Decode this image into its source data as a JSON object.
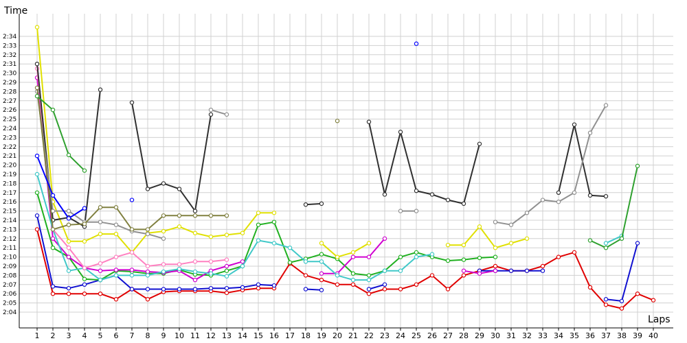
{
  "chart_data": {
    "type": "line",
    "ylabel": "Time",
    "xlabel": "Laps",
    "x": [
      1,
      2,
      3,
      4,
      5,
      6,
      7,
      8,
      9,
      10,
      11,
      12,
      13,
      14,
      15,
      16,
      17,
      18,
      19,
      20,
      21,
      22,
      23,
      24,
      25,
      26,
      27,
      28,
      29,
      30,
      31,
      32,
      33,
      34,
      35,
      36,
      37,
      38,
      39,
      40
    ],
    "y_ticks": [
      "2:04",
      "2:05",
      "2:06",
      "2:07",
      "2:08",
      "2:09",
      "2:10",
      "2:11",
      "2:12",
      "2:13",
      "2:14",
      "2:15",
      "2:16",
      "2:17",
      "2:18",
      "2:19",
      "2:20",
      "2:21",
      "2:22",
      "2:23",
      "2:24",
      "2:25",
      "2:26",
      "2:27",
      "2:28",
      "2:29",
      "2:30",
      "2:31",
      "2:32",
      "2:33",
      "2:34"
    ],
    "ylim_seconds": [
      123,
      155
    ],
    "grid": true,
    "series": [
      {
        "color": "#e00000",
        "values": [
          133,
          126,
          126,
          126,
          126,
          125.4,
          126.5,
          125.4,
          126.2,
          126.3,
          126.3,
          126.3,
          126.1,
          126.4,
          126.6,
          126.6,
          129.3,
          128,
          127.5,
          127,
          127,
          126,
          126.5,
          126.5,
          127,
          128,
          126.5,
          128,
          128.5,
          129,
          128.5,
          128.5,
          129,
          130,
          130.5,
          126.7,
          124.8,
          124.4,
          126,
          125.3
        ]
      },
      {
        "color": "#1010d0",
        "values": [
          134.5,
          126.8,
          126.6,
          127,
          127.5,
          128,
          126.5,
          126.5,
          126.5,
          126.5,
          126.5,
          126.6,
          126.6,
          126.7,
          127,
          126.9,
          null,
          126.5,
          126.4,
          null,
          null,
          126.5,
          127,
          null,
          null,
          null,
          null,
          null,
          128.5,
          128.5,
          128.5,
          128.5,
          128.5,
          null,
          null,
          null,
          125.4,
          125.2,
          131.5,
          null
        ]
      },
      {
        "color": "#20b020",
        "values": [
          137,
          131,
          130,
          127.6,
          127.5,
          128.5,
          128.4,
          128.2,
          128.2,
          128.6,
          128.1,
          128,
          128.5,
          129,
          133.5,
          133.8,
          129.4,
          129.8,
          130.3,
          129.8,
          128.2,
          128,
          128.5,
          130,
          130.5,
          130,
          129.6,
          129.7,
          129.9,
          130,
          null,
          null,
          null,
          null,
          null,
          null,
          null,
          null,
          null,
          null
        ]
      },
      {
        "color": "#d000d0",
        "values": [
          149.5,
          132,
          130,
          128.8,
          128.5,
          128.6,
          128.6,
          128.4,
          128.3,
          128.5,
          127.5,
          128.5,
          129,
          129.5,
          null,
          null,
          null,
          null,
          128.2,
          128.2,
          130,
          130,
          132,
          null,
          null,
          null,
          null,
          128.5,
          128.2,
          128.5,
          null,
          null,
          null,
          null,
          null,
          null,
          null,
          null,
          null,
          null
        ]
      },
      {
        "color": "#40c8c8",
        "values": [
          139,
          133,
          128.5,
          128.8,
          127.5,
          128,
          128,
          128,
          128.4,
          128.7,
          128.4,
          128.2,
          127.9,
          129,
          131.8,
          131.5,
          131,
          129.5,
          129.5,
          128,
          127.5,
          127.5,
          128.5,
          128.5,
          130,
          130.3,
          null,
          null,
          null,
          null,
          null,
          null,
          null,
          null,
          null,
          null,
          131.5,
          132.3,
          null,
          null
        ]
      },
      {
        "color": "#e0e000",
        "values": [
          155,
          136,
          131.7,
          131.7,
          132.5,
          132.5,
          130.5,
          132.6,
          132.8,
          133.3,
          132.6,
          132.2,
          132.4,
          132.6,
          134.8,
          134.8,
          null,
          null,
          131.5,
          130,
          130.5,
          131.5,
          null,
          null,
          null,
          null,
          131.3,
          131.3,
          133.3,
          131,
          131.5,
          132,
          null,
          null,
          null,
          null,
          null,
          null,
          null,
          null
        ]
      },
      {
        "color": "#ff80c0",
        "values": [
          150.5,
          133,
          131,
          128.8,
          129.3,
          130,
          130.5,
          129,
          129.2,
          129.2,
          129.5,
          129.5,
          129.7,
          null,
          null,
          null,
          null,
          null,
          null,
          null,
          null,
          null,
          null,
          null,
          null,
          null,
          null,
          null,
          null,
          null,
          null,
          null,
          null,
          null,
          null,
          null,
          null,
          null,
          null,
          null
        ]
      },
      {
        "color": "#303030",
        "values": [
          151,
          134,
          134.3,
          133.3,
          148.2,
          null,
          146.8,
          137.4,
          138,
          137.4,
          135,
          145.5,
          null,
          null,
          null,
          null,
          null,
          135.7,
          135.8,
          null,
          null,
          144.7,
          136.8,
          143.6,
          137.2,
          136.8,
          136.2,
          135.8,
          142.3,
          null,
          null,
          null,
          null,
          137,
          144.4,
          136.7,
          136.6,
          null,
          null,
          null
        ]
      },
      {
        "color": "#909090",
        "values": [
          148,
          135,
          135,
          133.8,
          133.8,
          133.5,
          132.8,
          132.5,
          132,
          null,
          null,
          146,
          145.5,
          null,
          null,
          null,
          null,
          null,
          null,
          null,
          null,
          null,
          null,
          135,
          135,
          null,
          null,
          null,
          null,
          133.8,
          133.5,
          134.8,
          136.2,
          136,
          137,
          143.5,
          146.5,
          null,
          null,
          null
        ]
      },
      {
        "color": "#808040",
        "values": [
          148.4,
          133,
          133.5,
          133.6,
          135.4,
          135.4,
          133,
          133,
          134.5,
          134.5,
          134.5,
          134.5,
          134.5,
          null,
          null,
          null,
          null,
          null,
          null,
          144.8,
          null,
          null,
          null,
          null,
          null,
          null,
          null,
          null,
          null,
          null,
          null,
          null,
          null,
          null,
          null,
          null,
          null,
          null,
          null,
          null
        ]
      },
      {
        "color": "#0000ff",
        "values": [
          141,
          136.7,
          134.2,
          135.3,
          null,
          null,
          136.2,
          null,
          null,
          null,
          null,
          null,
          null,
          null,
          null,
          null,
          null,
          null,
          null,
          null,
          null,
          null,
          null,
          null,
          153.2,
          null,
          null,
          null,
          null,
          null,
          null,
          null,
          null,
          null,
          null,
          null,
          null,
          null,
          null,
          null
        ]
      },
      {
        "color": "#2ea02e",
        "values": [
          147.5,
          146,
          141.1,
          139.4,
          null,
          null,
          null,
          null,
          null,
          null,
          null,
          null,
          null,
          null,
          null,
          null,
          null,
          null,
          null,
          null,
          null,
          null,
          null,
          null,
          null,
          null,
          null,
          null,
          null,
          null,
          null,
          null,
          null,
          null,
          null,
          131.8,
          131,
          132,
          139.9,
          null
        ]
      }
    ]
  }
}
